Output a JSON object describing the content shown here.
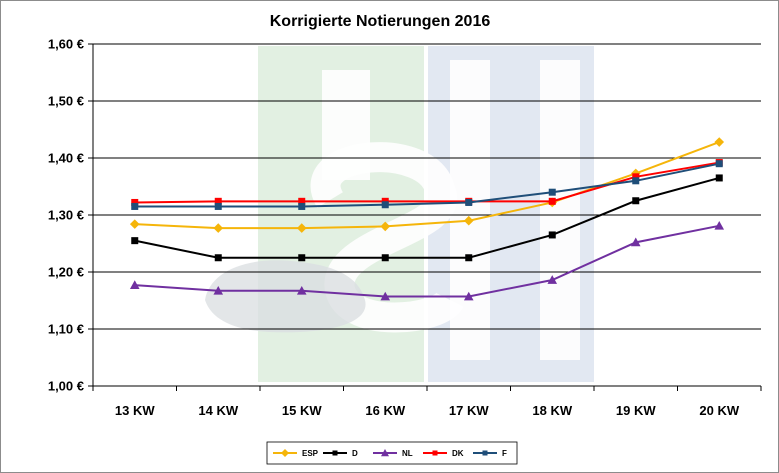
{
  "chart_data": {
    "type": "line",
    "title": "Korrigierte Notierungen 2016",
    "categories": [
      "13 KW",
      "14 KW",
      "15 KW",
      "16 KW",
      "17 KW",
      "18 KW",
      "19 KW",
      "20 KW"
    ],
    "ylim": [
      1.0,
      1.6
    ],
    "yticks": [
      1.0,
      1.1,
      1.2,
      1.3,
      1.4,
      1.5,
      1.6
    ],
    "ytick_labels": [
      "1,00 €",
      "1,10 €",
      "1,20 €",
      "1,30 €",
      "1,40 €",
      "1,50 €",
      "1,60 €"
    ],
    "grid": "horizontal",
    "legend_position": "bottom",
    "series": [
      {
        "name": "ESP",
        "color": "#f5b50a",
        "marker": "diamond",
        "values": [
          1.284,
          1.277,
          1.277,
          1.28,
          1.29,
          1.322,
          1.373,
          1.428
        ]
      },
      {
        "name": "D",
        "color": "#000000",
        "marker": "square",
        "values": [
          1.255,
          1.225,
          1.225,
          1.225,
          1.225,
          1.265,
          1.325,
          1.365
        ]
      },
      {
        "name": "NL",
        "color": "#7030a0",
        "marker": "triangle",
        "values": [
          1.177,
          1.167,
          1.167,
          1.157,
          1.157,
          1.186,
          1.252,
          1.281
        ]
      },
      {
        "name": "DK",
        "color": "#ff0000",
        "marker": "square",
        "values": [
          1.322,
          1.324,
          1.324,
          1.324,
          1.324,
          1.324,
          1.367,
          1.392
        ]
      },
      {
        "name": "F",
        "color": "#1f4e79",
        "marker": "square",
        "values": [
          1.315,
          1.315,
          1.315,
          1.318,
          1.322,
          1.34,
          1.36,
          1.39
        ]
      }
    ]
  }
}
